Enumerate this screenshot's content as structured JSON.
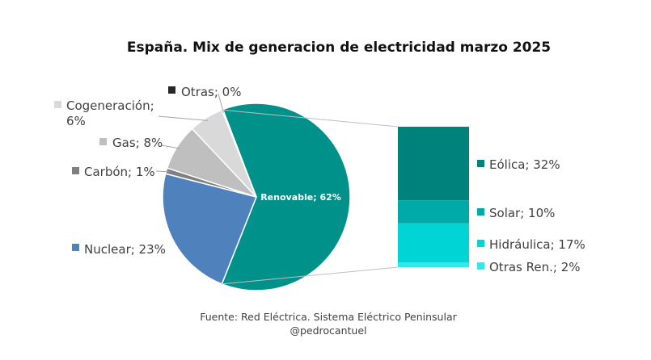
{
  "chart_data": {
    "type": "pie",
    "title": "España. Mix de generacion de electricidad marzo 2025",
    "slices": [
      {
        "name": "Renovable",
        "value": 62,
        "label": "Renovable; 62%",
        "color": "#00918a"
      },
      {
        "name": "Nuclear",
        "value": 23,
        "label": "Nuclear; 23%",
        "color": "#4f81bd"
      },
      {
        "name": "Carbón",
        "value": 1,
        "label": "Carbón; 1%",
        "color": "#7f7f7f"
      },
      {
        "name": "Gas",
        "value": 8,
        "label": "Gas; 8%",
        "color": "#bfbfbf"
      },
      {
        "name": "Cogeneración",
        "value": 6,
        "label_line1": "Cogeneración;",
        "label_line2": "6%",
        "color": "#d9d9d9"
      },
      {
        "name": "Otras",
        "value": 0,
        "label": "Otras; 0%",
        "color": "#262626"
      }
    ],
    "breakdown": {
      "parent": "Renovable",
      "items": [
        {
          "name": "Eólica",
          "value": 32,
          "label": "Eólica; 32%",
          "color": "#00827c"
        },
        {
          "name": "Solar",
          "value": 10,
          "label": "Solar; 10%",
          "color": "#00aaa8"
        },
        {
          "name": "Hidráulica",
          "value": 17,
          "label": "Hidráulica; 17%",
          "color": "#00d4d4"
        },
        {
          "name": "Otras Ren.",
          "value": 2,
          "label": "Otras Ren.; 2%",
          "color": "#33e8ea"
        }
      ]
    }
  },
  "source": {
    "line1": "Fuente: Red Eléctrica. Sistema Eléctrico Peninsular",
    "line2": "@pedrocantuel"
  }
}
